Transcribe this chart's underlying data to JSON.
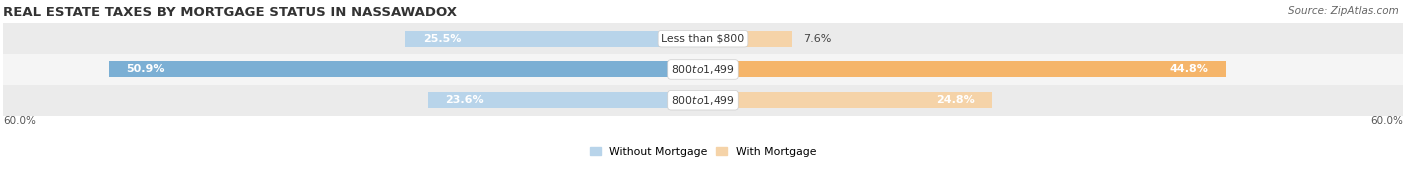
{
  "title": "REAL ESTATE TAXES BY MORTGAGE STATUS IN NASSAWADOX",
  "source": "Source: ZipAtlas.com",
  "rows": [
    {
      "label": "Less than $800",
      "without_mortgage": 25.5,
      "with_mortgage": 7.6
    },
    {
      "label": "$800 to $1,499",
      "without_mortgage": 50.9,
      "with_mortgage": 44.8
    },
    {
      "label": "$800 to $1,499",
      "without_mortgage": 23.6,
      "with_mortgage": 24.8
    }
  ],
  "axis_max": 60.0,
  "axis_label_left": "60.0%",
  "axis_label_right": "60.0%",
  "color_without": "#7bafd4",
  "color_with": "#f5b56a",
  "color_without_light": "#b8d4ea",
  "color_with_light": "#f5d3a8",
  "bar_height": 0.52,
  "row_bg_even": "#ebebeb",
  "row_bg_odd": "#f5f5f5",
  "legend_without": "Without Mortgage",
  "legend_with": "With Mortgage",
  "title_fontsize": 9.5,
  "source_fontsize": 7.5,
  "pct_fontsize": 8.0,
  "cat_fontsize": 7.8,
  "tick_fontsize": 7.5
}
